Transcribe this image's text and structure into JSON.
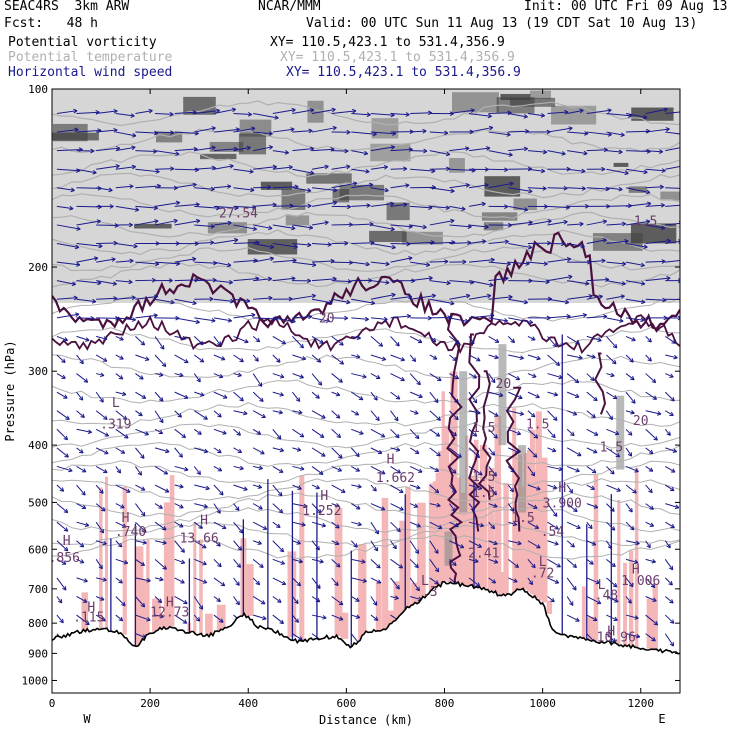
{
  "header": {
    "model": "SEAC4RS  3km ARW",
    "org": "NCAR/MMM",
    "init": "Init: 00 UTC Fri 09 Aug 13",
    "fcst": "Fcst:   48 h",
    "valid": "Valid: 00 UTC Sun 11 Aug 13 (19 CDT Sat 10 Aug 13)",
    "fields": [
      {
        "name": "Potential vorticity",
        "xy": "XY= 110.5,423.1 to 531.4,356.9",
        "color": "#000000"
      },
      {
        "name": "Potential temperature",
        "xy": "XY= 110.5,423.1 to 531.4,356.9",
        "color": "#b0b0b0"
      },
      {
        "name": "Horizontal wind speed",
        "xy": "XY= 110.5,423.1 to 531.4,356.9",
        "color": "#1a1a8c"
      }
    ]
  },
  "chart_data": {
    "type": "cross-section",
    "xlabel": "Distance (km)",
    "ylabel": "Pressure (hPa)",
    "xlim": [
      0,
      1280
    ],
    "ylim": [
      1050,
      100
    ],
    "y_scale": "log",
    "x_ticks": [
      0,
      200,
      400,
      600,
      800,
      1000,
      1200
    ],
    "y_ticks": [
      100,
      200,
      300,
      400,
      500,
      600,
      700,
      800,
      900,
      1000
    ],
    "x_end_labels": {
      "left": "W",
      "right": "E"
    },
    "terrain_surface": {
      "x": [
        0,
        50,
        100,
        140,
        170,
        200,
        240,
        280,
        320,
        360,
        390,
        420,
        460,
        500,
        540,
        580,
        610,
        640,
        680,
        720,
        760,
        800,
        840,
        880,
        920,
        960,
        1000,
        1020,
        1040,
        1080,
        1120,
        1160,
        1200,
        1240,
        1280
      ],
      "pressure": [
        850,
        830,
        815,
        830,
        880,
        830,
        810,
        830,
        840,
        810,
        770,
        810,
        830,
        860,
        850,
        840,
        880,
        830,
        820,
        760,
        720,
        680,
        690,
        700,
        720,
        700,
        740,
        820,
        840,
        850,
        860,
        870,
        880,
        890,
        900
      ]
    },
    "annotations": [
      {
        "text": "H",
        "x": 30,
        "p": 590
      },
      {
        "text": ".856",
        "x": 25,
        "p": 630
      },
      {
        "text": "H",
        "x": 150,
        "p": 540
      },
      {
        "text": ".740",
        "x": 160,
        "p": 570
      },
      {
        "text": "H",
        "x": 310,
        "p": 545
      },
      {
        "text": "13.66",
        "x": 300,
        "p": 585
      },
      {
        "text": "H",
        "x": 555,
        "p": 495
      },
      {
        "text": "1.252",
        "x": 550,
        "p": 525
      },
      {
        "text": "H",
        "x": 690,
        "p": 430
      },
      {
        "text": "1.662",
        "x": 700,
        "p": 462
      },
      {
        "text": "L",
        "x": 130,
        "p": 345
      },
      {
        "text": ".319",
        "x": 130,
        "p": 375
      },
      {
        "text": "H",
        "x": 80,
        "p": 765
      },
      {
        "text": ".115",
        "x": 75,
        "p": 795
      },
      {
        "text": "H",
        "x": 240,
        "p": 750
      },
      {
        "text": "12.73",
        "x": 240,
        "p": 780
      },
      {
        "text": "L",
        "x": 760,
        "p": 690
      },
      {
        "text": ".3",
        "x": 770,
        "p": 720
      },
      {
        "text": "1.5",
        "x": 880,
        "p": 380
      },
      {
        "text": "1.5",
        "x": 880,
        "p": 490
      },
      {
        "text": "1.5",
        "x": 990,
        "p": 375
      },
      {
        "text": "1.5",
        "x": 960,
        "p": 540
      },
      {
        "text": ".54",
        "x": 1020,
        "p": 570
      },
      {
        "text": "H",
        "x": 1040,
        "p": 480
      },
      {
        "text": "3.900",
        "x": 1040,
        "p": 510
      },
      {
        "text": "L",
        "x": 1000,
        "p": 640
      },
      {
        "text": ".72",
        "x": 1000,
        "p": 670
      },
      {
        "text": "L",
        "x": 1120,
        "p": 700
      },
      {
        "text": ".48",
        "x": 1130,
        "p": 730
      },
      {
        "text": "H",
        "x": 1190,
        "p": 660
      },
      {
        "text": "1.006",
        "x": 1200,
        "p": 690
      },
      {
        "text": "H",
        "x": 1140,
        "p": 840
      },
      {
        "text": "10.96",
        "x": 1150,
        "p": 860
      },
      {
        "text": "1.5",
        "x": 1140,
        "p": 410
      },
      {
        "text": "20",
        "x": 1200,
        "p": 370
      },
      {
        "text": "1.5",
        "x": 1210,
        "p": 170
      },
      {
        "text": "20",
        "x": 560,
        "p": 248
      },
      {
        "text": "27.54",
        "x": 380,
        "p": 165
      },
      {
        "text": "1.5",
        "x": 880,
        "p": 460
      },
      {
        "text": "2.41",
        "x": 880,
        "p": 620
      },
      {
        "text": "20",
        "x": 920,
        "p": 320
      }
    ],
    "tropopause_pressure": 230,
    "colors": {
      "pv_contour": "#4a1040",
      "theta_contour": "#b0b0b0",
      "wind_vector": "#1a1a8c",
      "pv_fill_high": "#404040",
      "cloud_fill": "#f4b6b6",
      "terrain": "#000000"
    }
  }
}
